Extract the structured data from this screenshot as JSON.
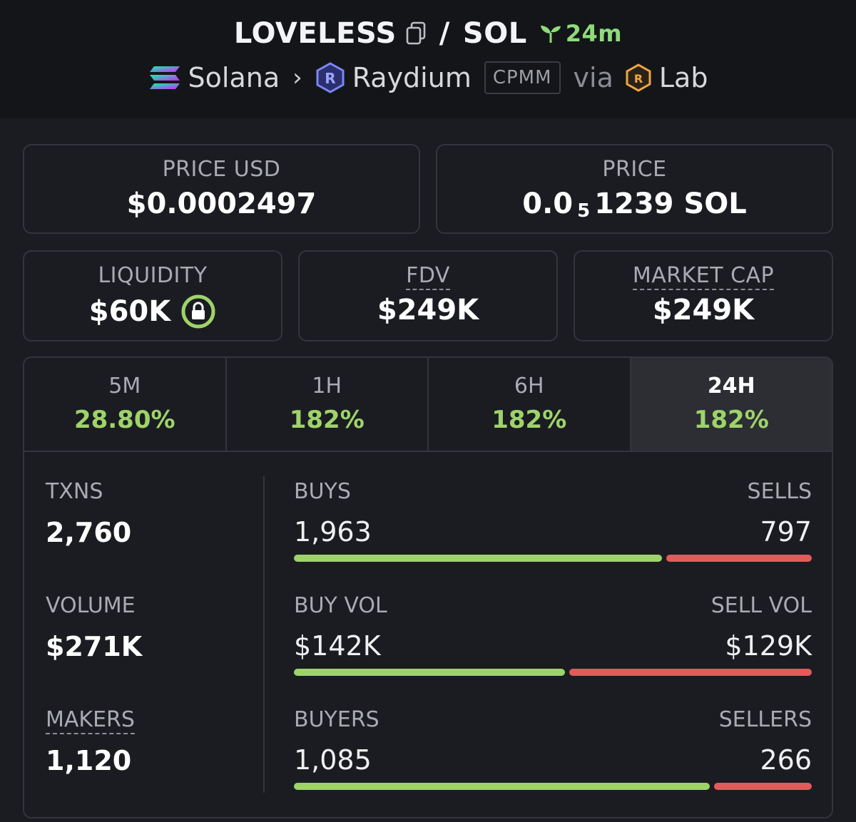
{
  "header": {
    "token": "LOVELESS",
    "separator": "/",
    "quote": "SOL",
    "age": "24m",
    "chain": "Solana",
    "dex": "Raydium",
    "pool_type": "CPMM",
    "via": "via",
    "launchpad": "Lab"
  },
  "prices": {
    "usd_label": "PRICE USD",
    "usd_value": "$0.0002497",
    "native_label": "PRICE",
    "native_prefix": "0.0",
    "native_zeros": "5",
    "native_digits": "1239 SOL"
  },
  "metrics": {
    "liquidity_label": "LIQUIDITY",
    "liquidity_value": "$60K",
    "fdv_label": "FDV",
    "fdv_value": "$249K",
    "mcap_label": "MARKET CAP",
    "mcap_value": "$249K"
  },
  "tabs": [
    {
      "label": "5M",
      "value": "28.80%"
    },
    {
      "label": "1H",
      "value": "182%"
    },
    {
      "label": "6H",
      "value": "182%"
    },
    {
      "label": "24H",
      "value": "182%"
    }
  ],
  "active_tab": "24H",
  "summary": {
    "txns_label": "TXNS",
    "txns_value": "2,760",
    "volume_label": "VOLUME",
    "volume_value": "$271K",
    "makers_label": "MAKERS",
    "makers_value": "1,120"
  },
  "breakdown": [
    {
      "left_label": "BUYS",
      "left_value": "1,963",
      "right_label": "SELLS",
      "right_value": "797",
      "buy_fraction": 0.711
    },
    {
      "left_label": "BUY VOL",
      "left_value": "$142K",
      "right_label": "SELL VOL",
      "right_value": "$129K",
      "buy_fraction": 0.524
    },
    {
      "left_label": "BUYERS",
      "left_value": "1,085",
      "right_label": "SELLERS",
      "right_value": "266",
      "buy_fraction": 0.803
    }
  ],
  "colors": {
    "positive": "#9ed36a",
    "negative": "#e25b5b",
    "background": "#1b1c21"
  }
}
